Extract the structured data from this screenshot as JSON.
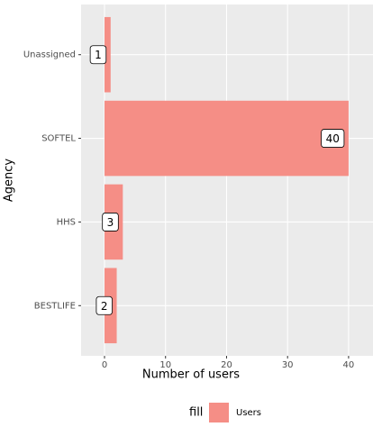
{
  "chart_data": {
    "type": "bar",
    "orientation": "horizontal",
    "categories": [
      "Unassigned",
      "SOFTEL",
      "HHS",
      "BESTLIFE"
    ],
    "series": [
      {
        "name": "Users",
        "color": "#f58e86",
        "values": [
          1,
          40,
          3,
          2
        ]
      }
    ],
    "xlabel": "Number of users",
    "ylabel": "Agency",
    "legend_title": "fill",
    "xlim": [
      -3.84,
      44
    ],
    "xticks": [
      0,
      10,
      20,
      30,
      40
    ],
    "grid": true,
    "legend_position": "bottom"
  }
}
